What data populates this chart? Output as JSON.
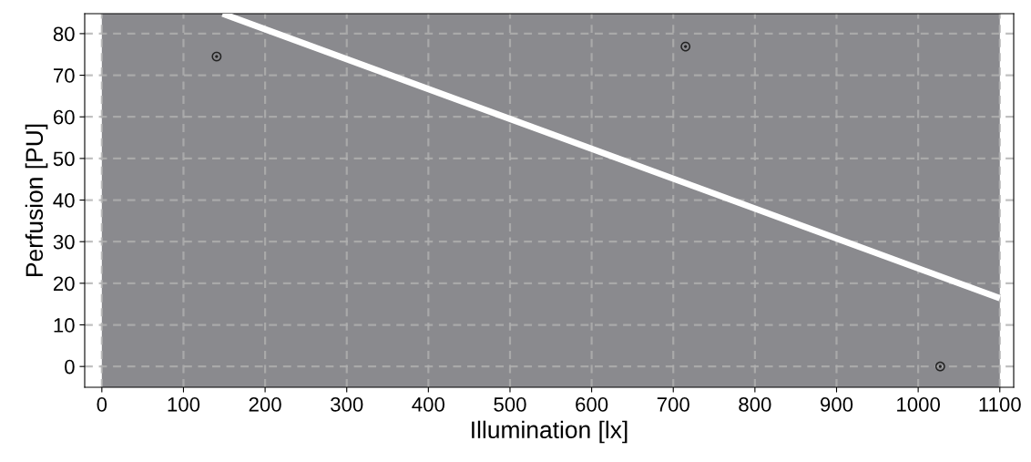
{
  "chart_data": {
    "type": "line",
    "xlabel": "Illumination [lx]",
    "ylabel": "Perfusion [PU]",
    "xlim": [
      -21,
      1117
    ],
    "ylim": [
      -5,
      84.8
    ],
    "xticks": [
      0,
      100,
      200,
      300,
      400,
      500,
      600,
      700,
      800,
      900,
      1000,
      1100
    ],
    "yticks": [
      0,
      10,
      20,
      30,
      40,
      50,
      60,
      70,
      80
    ],
    "grid": true,
    "bands": [
      {
        "axis": "x",
        "from": 0,
        "to": 1100,
        "color": "#8a8a8e"
      }
    ],
    "series": [
      {
        "type": "scatter",
        "marker": "circle",
        "color": "#222222",
        "x": [
          140.6,
          715,
          1027
        ],
        "values": [
          74.5,
          76.9,
          0
        ]
      },
      {
        "color": "#ffffff",
        "x": [
          148,
          1100
        ],
        "values": [
          84.8,
          16.4
        ],
        "line_style": "solid"
      }
    ]
  }
}
